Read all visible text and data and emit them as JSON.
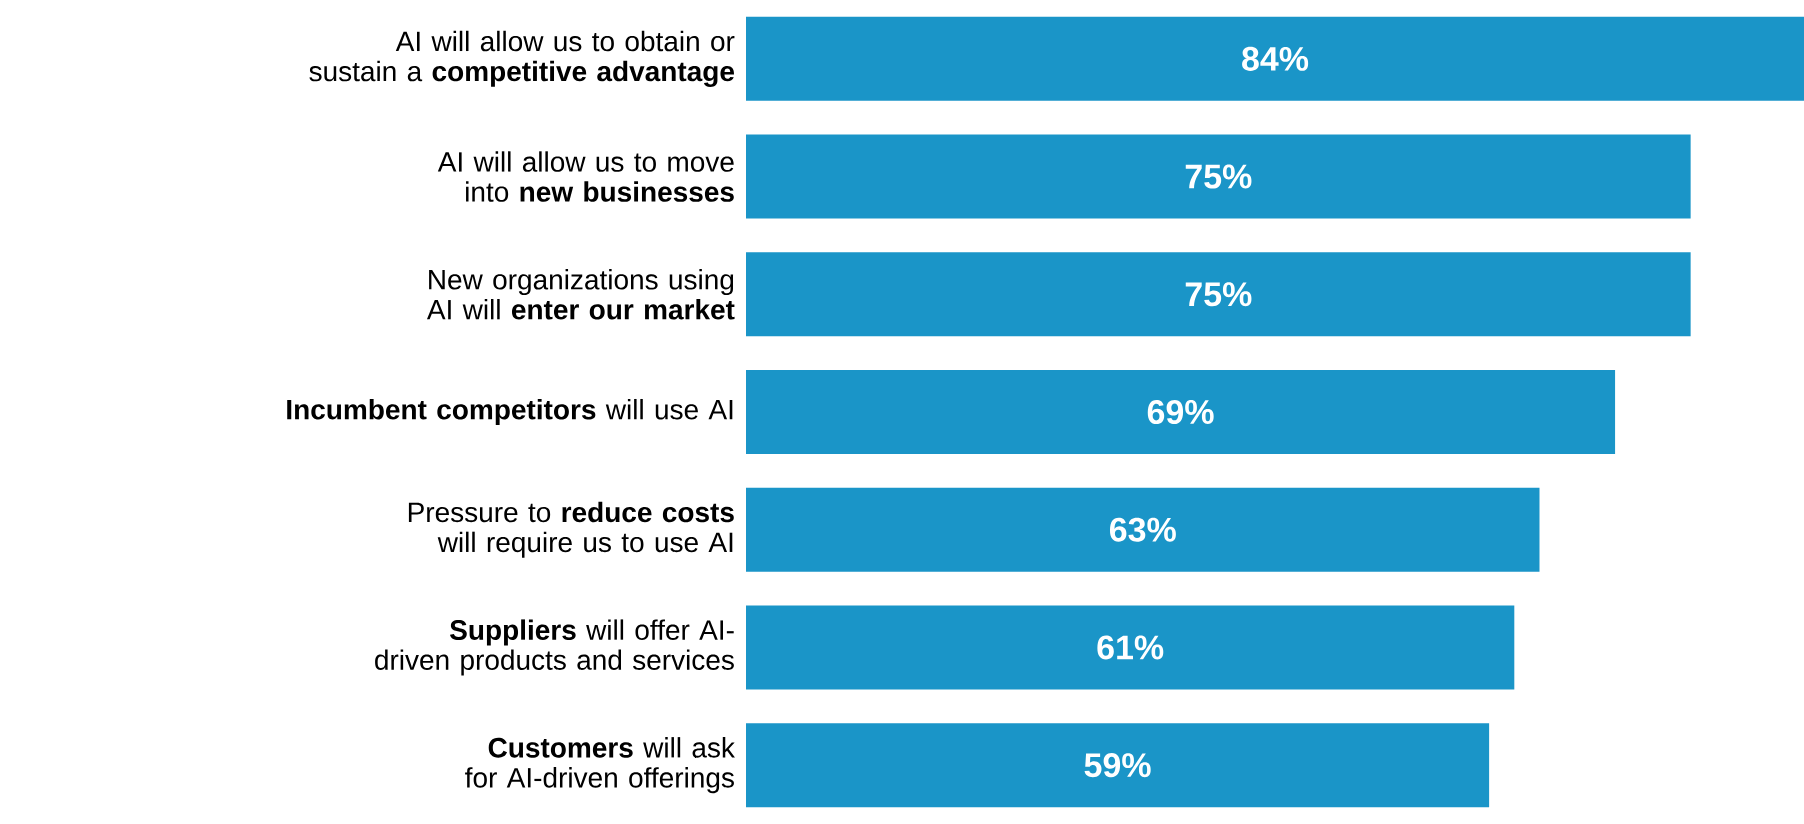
{
  "chart_data": {
    "type": "bar",
    "orientation": "horizontal",
    "categories": [
      "AI will allow us to obtain or sustain a **competitive advantage**",
      "AI will allow us to move into **new businesses**",
      "New organizations using AI will **enter our market**",
      "**Incumbent competitors** will use AI",
      "Pressure to **reduce costs** will require us to use AI",
      "**Suppliers** will offer AI-driven products and services",
      "**Customers** will ask for AI-driven offerings"
    ],
    "values": [
      84,
      75,
      75,
      69,
      63,
      61,
      59
    ],
    "value_labels": [
      "84%",
      "75%",
      "75%",
      "69%",
      "63%",
      "61%",
      "59%"
    ],
    "color": "#1a95c8"
  }
}
